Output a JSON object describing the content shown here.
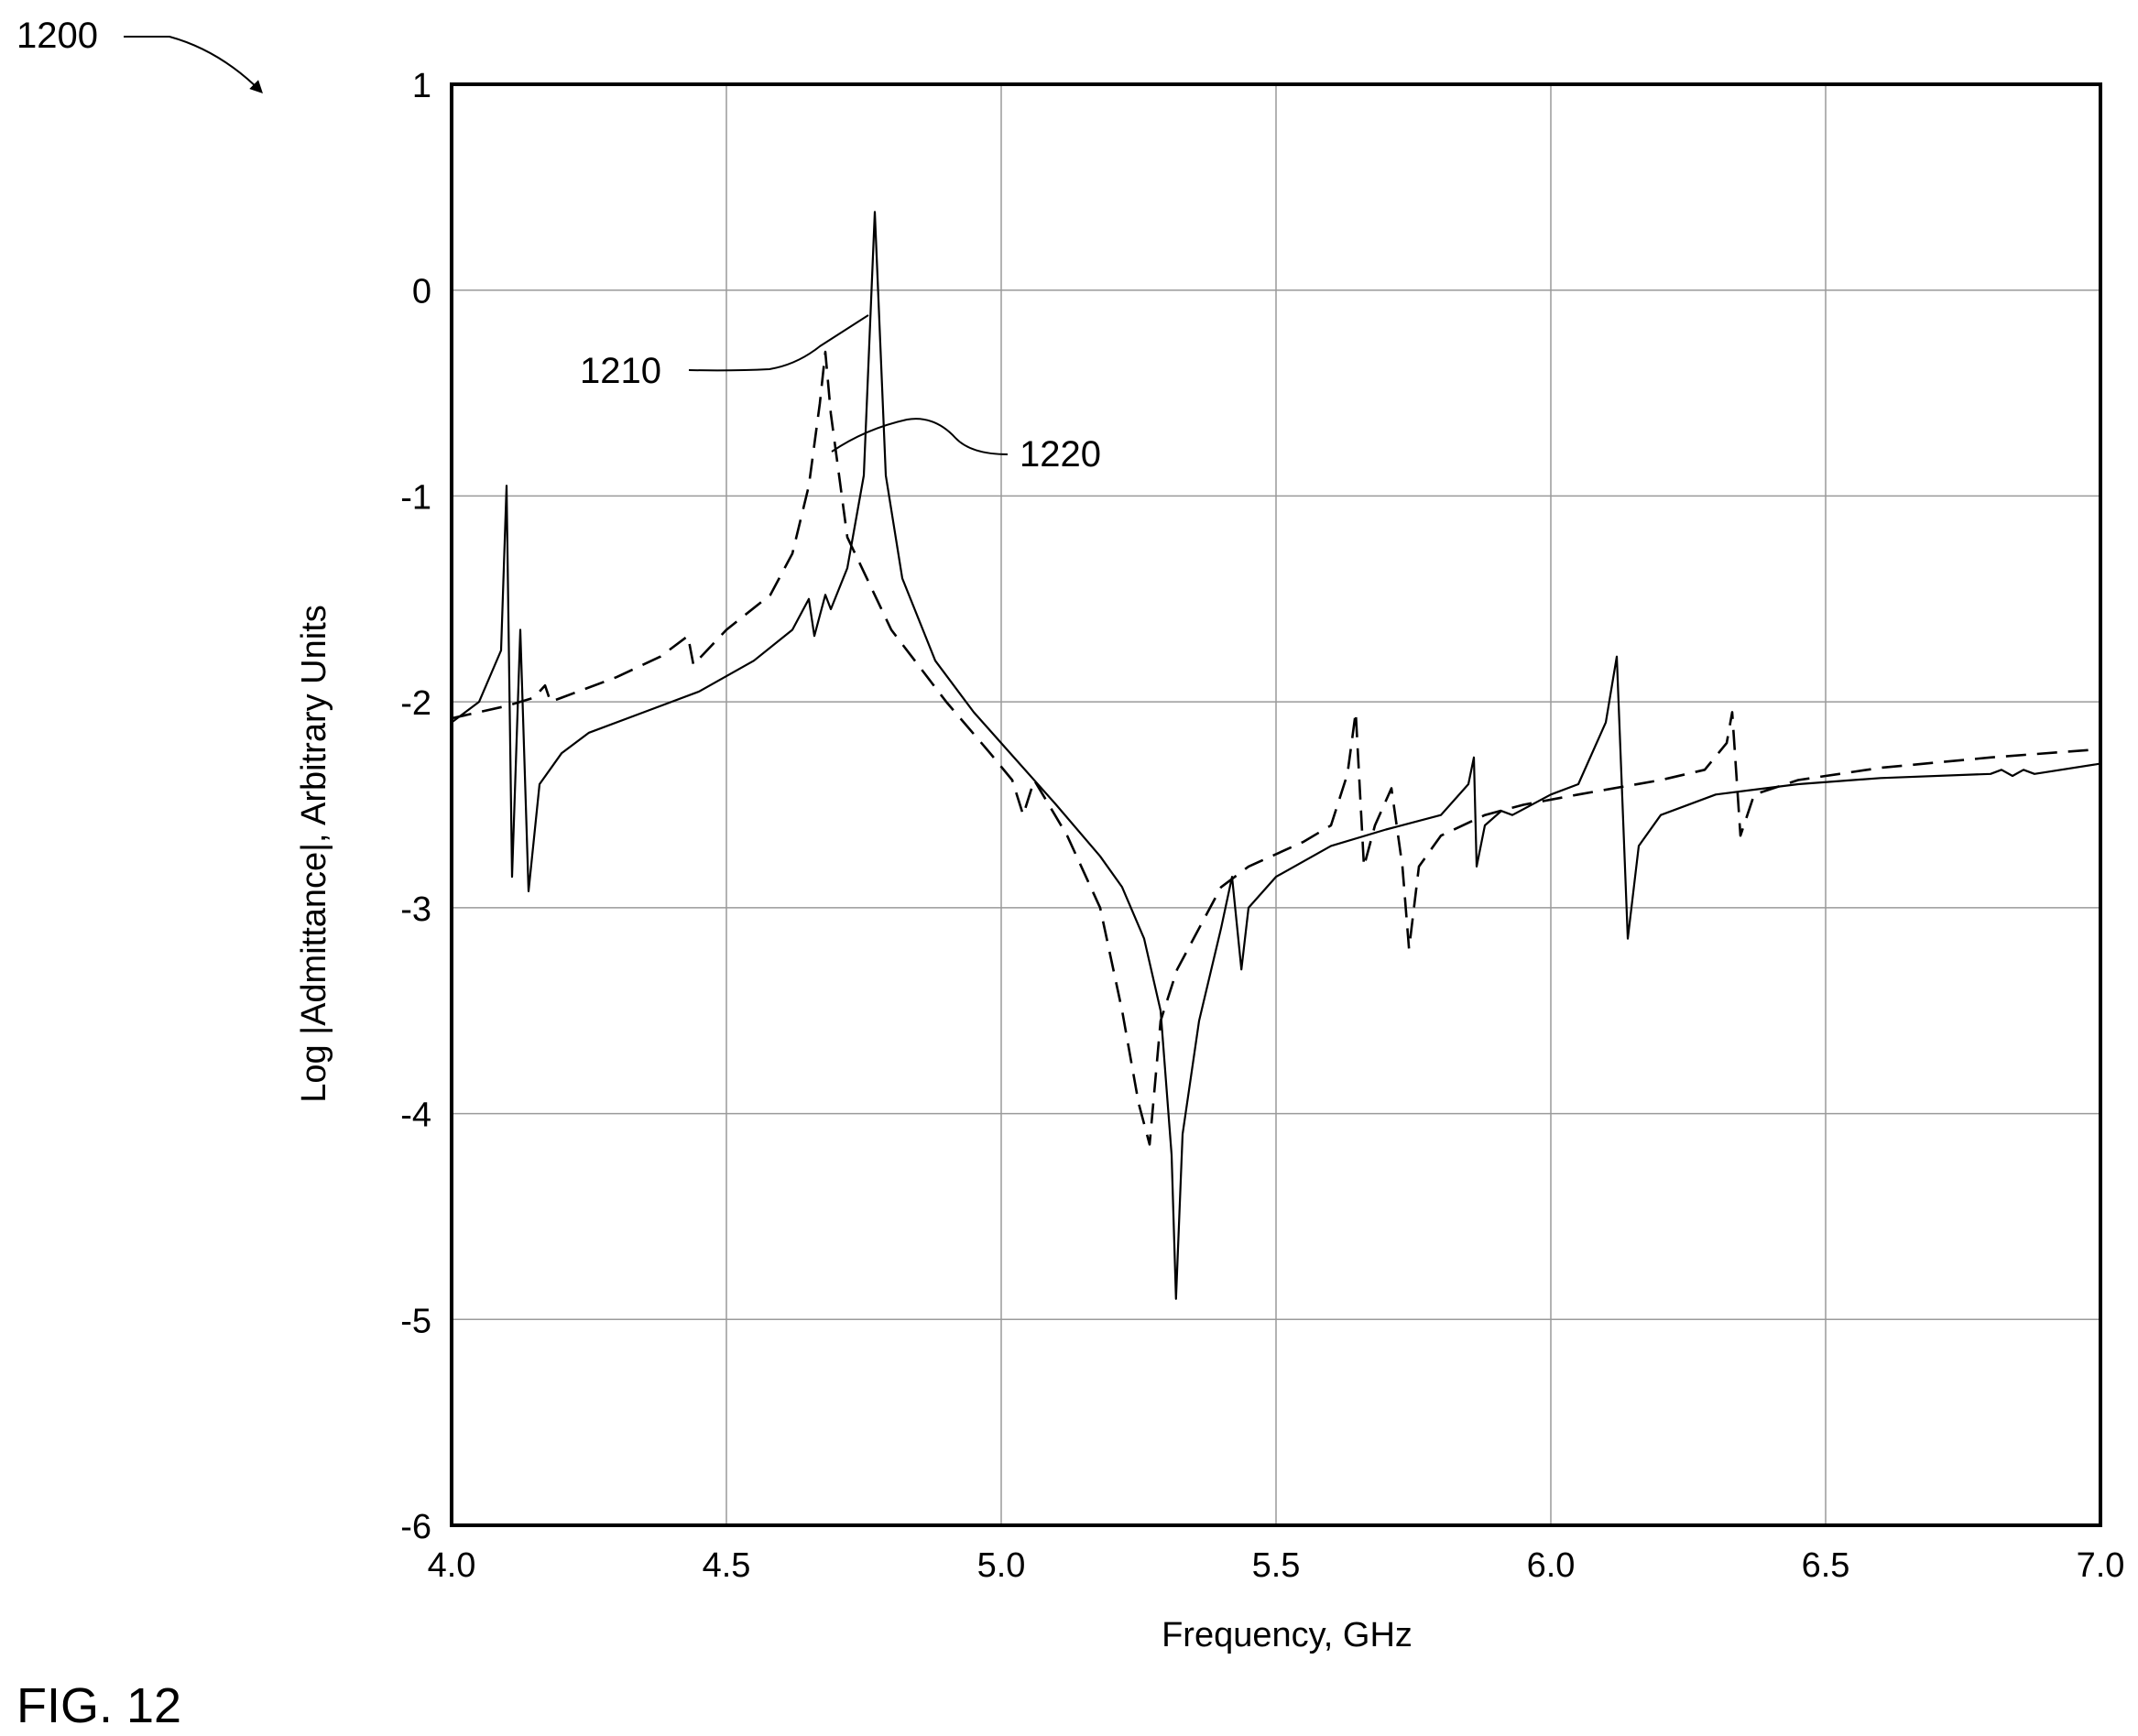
{
  "figure": {
    "ref_label": "1200",
    "caption": "FIG. 12"
  },
  "chart_data": {
    "type": "line",
    "title": "",
    "xlabel": "Frequency, GHz",
    "ylabel": "Log |Admittance|, Arbitrary Units",
    "xlim": [
      4.0,
      7.0
    ],
    "ylim": [
      -6,
      1
    ],
    "xticks": [
      "4.0",
      "4.5",
      "5.0",
      "5.5",
      "6.0",
      "6.5",
      "7.0"
    ],
    "yticks": [
      "1",
      "0",
      "-1",
      "-2",
      "-3",
      "-4",
      "-5",
      "-6"
    ],
    "grid": true,
    "series": [
      {
        "name": "1210",
        "style": "solid",
        "points": [
          [
            4.0,
            -2.1
          ],
          [
            4.05,
            -2.0
          ],
          [
            4.09,
            -1.75
          ],
          [
            4.1,
            -0.95
          ],
          [
            4.11,
            -2.85
          ],
          [
            4.125,
            -1.65
          ],
          [
            4.14,
            -2.92
          ],
          [
            4.16,
            -2.4
          ],
          [
            4.2,
            -2.25
          ],
          [
            4.25,
            -2.15
          ],
          [
            4.35,
            -2.05
          ],
          [
            4.45,
            -1.95
          ],
          [
            4.55,
            -1.8
          ],
          [
            4.62,
            -1.65
          ],
          [
            4.65,
            -1.5
          ],
          [
            4.66,
            -1.68
          ],
          [
            4.68,
            -1.48
          ],
          [
            4.69,
            -1.55
          ],
          [
            4.72,
            -1.35
          ],
          [
            4.75,
            -0.9
          ],
          [
            4.77,
            0.38
          ],
          [
            4.79,
            -0.9
          ],
          [
            4.82,
            -1.4
          ],
          [
            4.88,
            -1.8
          ],
          [
            4.95,
            -2.05
          ],
          [
            5.0,
            -2.2
          ],
          [
            5.1,
            -2.5
          ],
          [
            5.18,
            -2.75
          ],
          [
            5.22,
            -2.9
          ],
          [
            5.26,
            -3.15
          ],
          [
            5.29,
            -3.5
          ],
          [
            5.31,
            -4.2
          ],
          [
            5.318,
            -4.9
          ],
          [
            5.33,
            -4.1
          ],
          [
            5.36,
            -3.55
          ],
          [
            5.4,
            -3.1
          ],
          [
            5.42,
            -2.85
          ],
          [
            5.437,
            -3.3
          ],
          [
            5.45,
            -3.0
          ],
          [
            5.5,
            -2.85
          ],
          [
            5.6,
            -2.7
          ],
          [
            5.7,
            -2.62
          ],
          [
            5.8,
            -2.55
          ],
          [
            5.85,
            -2.4
          ],
          [
            5.86,
            -2.27
          ],
          [
            5.865,
            -2.8
          ],
          [
            5.88,
            -2.6
          ],
          [
            5.91,
            -2.53
          ],
          [
            5.93,
            -2.55
          ],
          [
            6.0,
            -2.45
          ],
          [
            6.05,
            -2.4
          ],
          [
            6.1,
            -2.1
          ],
          [
            6.12,
            -1.78
          ],
          [
            6.14,
            -3.15
          ],
          [
            6.16,
            -2.7
          ],
          [
            6.2,
            -2.55
          ],
          [
            6.3,
            -2.45
          ],
          [
            6.45,
            -2.4
          ],
          [
            6.6,
            -2.37
          ],
          [
            6.8,
            -2.35
          ],
          [
            6.82,
            -2.33
          ],
          [
            6.84,
            -2.36
          ],
          [
            6.86,
            -2.33
          ],
          [
            6.88,
            -2.35
          ],
          [
            7.0,
            -2.3
          ]
        ]
      },
      {
        "name": "1220",
        "style": "dashed",
        "points": [
          [
            4.0,
            -2.08
          ],
          [
            4.1,
            -2.02
          ],
          [
            4.15,
            -1.98
          ],
          [
            4.17,
            -1.92
          ],
          [
            4.18,
            -2.0
          ],
          [
            4.2,
            -1.98
          ],
          [
            4.3,
            -1.88
          ],
          [
            4.38,
            -1.78
          ],
          [
            4.43,
            -1.68
          ],
          [
            4.44,
            -1.82
          ],
          [
            4.5,
            -1.65
          ],
          [
            4.58,
            -1.48
          ],
          [
            4.62,
            -1.28
          ],
          [
            4.65,
            -0.95
          ],
          [
            4.67,
            -0.55
          ],
          [
            4.68,
            -0.3
          ],
          [
            4.69,
            -0.6
          ],
          [
            4.72,
            -1.2
          ],
          [
            4.8,
            -1.65
          ],
          [
            4.9,
            -2.0
          ],
          [
            4.98,
            -2.25
          ],
          [
            5.02,
            -2.38
          ],
          [
            5.04,
            -2.55
          ],
          [
            5.06,
            -2.38
          ],
          [
            5.12,
            -2.65
          ],
          [
            5.18,
            -3.0
          ],
          [
            5.22,
            -3.5
          ],
          [
            5.25,
            -3.95
          ],
          [
            5.27,
            -4.15
          ],
          [
            5.29,
            -3.55
          ],
          [
            5.32,
            -3.3
          ],
          [
            5.36,
            -3.1
          ],
          [
            5.4,
            -2.9
          ],
          [
            5.45,
            -2.8
          ],
          [
            5.55,
            -2.68
          ],
          [
            5.6,
            -2.6
          ],
          [
            5.63,
            -2.35
          ],
          [
            5.645,
            -2.05
          ],
          [
            5.66,
            -2.8
          ],
          [
            5.68,
            -2.6
          ],
          [
            5.71,
            -2.42
          ],
          [
            5.73,
            -2.8
          ],
          [
            5.742,
            -3.2
          ],
          [
            5.76,
            -2.8
          ],
          [
            5.8,
            -2.65
          ],
          [
            5.88,
            -2.55
          ],
          [
            5.95,
            -2.5
          ],
          [
            6.05,
            -2.45
          ],
          [
            6.2,
            -2.38
          ],
          [
            6.28,
            -2.33
          ],
          [
            6.32,
            -2.2
          ],
          [
            6.33,
            -2.05
          ],
          [
            6.345,
            -2.65
          ],
          [
            6.37,
            -2.45
          ],
          [
            6.45,
            -2.38
          ],
          [
            6.6,
            -2.32
          ],
          [
            6.8,
            -2.27
          ],
          [
            7.0,
            -2.23
          ]
        ]
      }
    ]
  }
}
